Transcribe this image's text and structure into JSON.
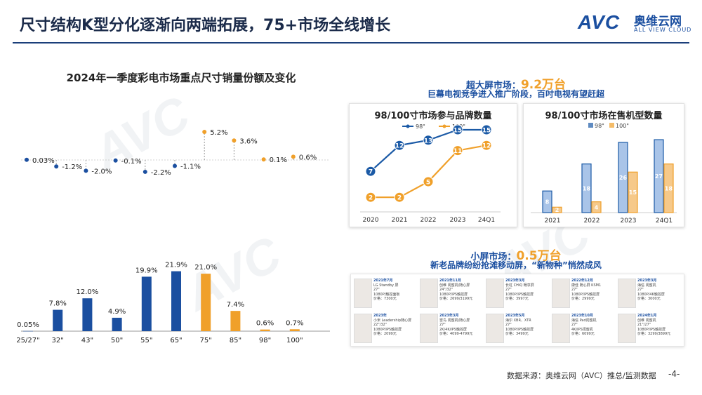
{
  "page": {
    "title": "尺寸结构K型分化逐渐向两端拓展，75+市场全线增长",
    "logo": {
      "mark": "AVC",
      "cn": "奥维云网",
      "en": "ALL VIEW CLOUD"
    },
    "footer": "数据来源：奥维云网（AVC）推总/监测数据",
    "page_number": "-4-"
  },
  "headlines": {
    "large_prefix": "超大屏市场：",
    "large_value": "9.2万台",
    "large_sub": "巨幕电视竞争进入推广阶段，百吋电视有望赶超",
    "small_prefix": "小屏市场：",
    "small_value": "0.5万台",
    "small_sub": "新老品牌纷纷抢滩移动屏，“新物种”悄然成风"
  },
  "chart_data": [
    {
      "type": "bar",
      "title": "2024年一季度彩电市场重点尺寸销量份额及变化",
      "categories": [
        "25/27\"",
        "32\"",
        "43\"",
        "50\"",
        "55\"",
        "65\"",
        "75\"",
        "85\"",
        "98\"",
        "100\""
      ],
      "series": [
        {
          "values": [
            0.05,
            7.8,
            12.0,
            4.9,
            19.9,
            21.9,
            21.0,
            7.4,
            0.6,
            0.7
          ]
        }
      ],
      "value_labels": [
        "0.05%",
        "7.8%",
        "12.0%",
        "4.9%",
        "19.9%",
        "21.9%",
        "21.0%",
        "7.4%",
        "0.6%",
        "0.7%"
      ],
      "change": {
        "values": [
          0.03,
          -1.2,
          -2.0,
          -0.1,
          -2.2,
          -1.1,
          5.2,
          3.6,
          0.1,
          0.6
        ],
        "labels": [
          "0.03%",
          "-1.2%",
          "-2.0%",
          "-0.1%",
          "-2.2%",
          "-1.1%",
          "5.2%",
          "3.6%",
          "0.1%",
          "0.6%"
        ]
      },
      "colors": {
        "small": "#1b4fa0",
        "large": "#f0a02a"
      },
      "ylim": [
        0,
        25
      ]
    },
    {
      "type": "line",
      "title": "98/100寸市场参与品牌数量",
      "categories": [
        "2020",
        "2021",
        "2022",
        "2023",
        "24Q1"
      ],
      "series": [
        {
          "name": "98\"",
          "values": [
            7,
            12,
            13,
            15,
            15
          ],
          "color": "#1b5aa6"
        },
        {
          "name": "100\"",
          "values": [
            2,
            2,
            5,
            11,
            12
          ],
          "color": "#f0a02a"
        }
      ],
      "ylim": [
        0,
        17
      ]
    },
    {
      "type": "bar",
      "title": "98/100寸市场在售机型数量",
      "categories": [
        "2021",
        "2022",
        "2023",
        "24Q1"
      ],
      "series": [
        {
          "name": "98\"",
          "values": [
            8,
            18,
            26,
            27
          ],
          "color": "#1b5aa6"
        },
        {
          "name": "100\"",
          "values": [
            2,
            4,
            15,
            18
          ],
          "color": "#f0a02a"
        }
      ],
      "ylim": [
        0,
        30
      ]
    }
  ],
  "products": [
    {
      "date": "2021年7月",
      "lines": [
        "LG Standby 屏",
        "27\"",
        "1080P/触控面板",
        "价格：7300元"
      ]
    },
    {
      "date": "2021年11月",
      "lines": [
        "创维 闺蜜机/随心屏",
        "24\"/32\"",
        "1080P/IPS触控屏",
        "价格：2699/3199元"
      ]
    },
    {
      "date": "2023年3月",
      "lines": [
        "长虹 CHiQ 畅享屏",
        "27\"",
        "1080P/IPS触控屏",
        "价格：3997元"
      ]
    },
    {
      "date": "2022年12月",
      "lines": [
        "康佳 随心屏 KSM1",
        "27\"",
        "1080P/IPS触控屏",
        "价格：2999元"
      ]
    },
    {
      "date": "2023年3月",
      "lines": [
        "海信 闺蜜机",
        "27\"",
        "1080P/4K触控屏",
        "价格：3000元"
      ]
    },
    {
      "date": "2023年",
      "lines": [
        "小米 Leadership随心屏",
        "22\"/32\"",
        "1080P/IPS触控屏",
        "价格：2099元"
      ]
    },
    {
      "date": "2023年3月",
      "lines": [
        "雷鸟 闺蜜机/随心屏",
        "27\"",
        "2K/4K/IPS触控屏",
        "价格：4099-4799元"
      ]
    },
    {
      "date": "2023年5月",
      "lines": [
        "海尔 XBR、XTR",
        "27\"",
        "1080P/IPS触控屏",
        "价格：3499元"
      ]
    },
    {
      "date": "2023年10月",
      "lines": [
        "海信 Pad闺蜜机",
        "27\"",
        "4K/IPS闺蜜机",
        "价格：6099元"
      ]
    },
    {
      "date": "2024年1月",
      "lines": [
        "创维 闺蜜机",
        "21\"/27\"",
        "1080P/IPS触控屏",
        "价格：3299/3899元"
      ]
    }
  ]
}
